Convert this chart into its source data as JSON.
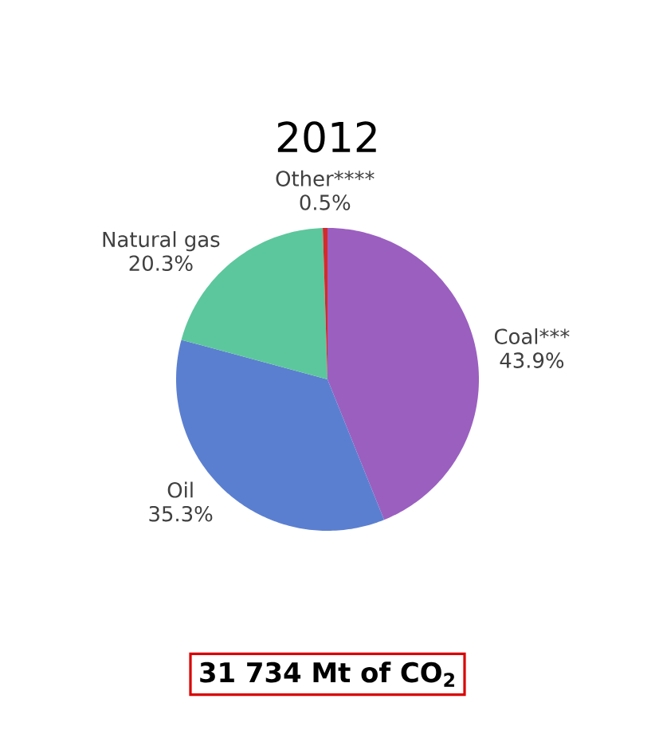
{
  "chart_data": {
    "type": "pie",
    "title": "2012",
    "categories": [
      "Coal***",
      "Oil",
      "Natural gas",
      "Other****"
    ],
    "values": [
      43.9,
      35.3,
      20.3,
      0.5
    ],
    "value_labels": [
      "43.9%",
      "35.3%",
      "20.3%",
      "0.5%"
    ],
    "colors": [
      "#9b5fc0",
      "#5b7fd0",
      "#5cc79c",
      "#d42a2a"
    ],
    "annotations": [
      "31 734 Mt of CO$_{2}$"
    ]
  }
}
